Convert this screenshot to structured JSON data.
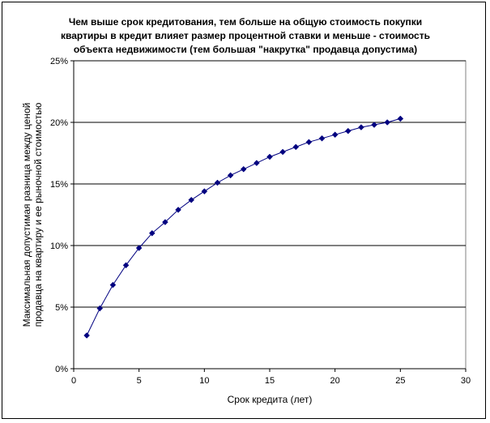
{
  "chart_data": {
    "type": "scatter",
    "connected": true,
    "title_lines": [
      "Чем выше срок кредитования, тем больше на общую стоимость покупки",
      "квартиры в кредит влияет размер процентной ставки и меньше - стоимость",
      "объекта недвижимости (тем большая \"накрутка\" продавца допустима)"
    ],
    "xlabel": "Срок кредита (лет)",
    "ylabel_lines": [
      "Максимальная допустимая разница между ценой",
      "продавца на квартиру и ее рыночной стоимостью"
    ],
    "xlim": [
      0,
      30
    ],
    "ylim": [
      0,
      25
    ],
    "x_ticks": [
      0,
      5,
      10,
      15,
      20,
      25,
      30
    ],
    "y_ticks": [
      0,
      5,
      10,
      15,
      20,
      25
    ],
    "y_tick_labels": [
      "0%",
      "5%",
      "10%",
      "15%",
      "20%",
      "25%"
    ],
    "y_unit": "%",
    "grid": "horizontal",
    "legend": "none",
    "marker": "diamond",
    "series": [
      {
        "color": "#000080",
        "x": [
          1,
          2,
          3,
          4,
          5,
          6,
          7,
          8,
          9,
          10,
          11,
          12,
          13,
          14,
          15,
          16,
          17,
          18,
          19,
          20,
          21,
          22,
          23,
          24,
          25
        ],
        "values": [
          2.7,
          4.9,
          6.8,
          8.4,
          9.8,
          11.0,
          11.9,
          12.9,
          13.7,
          14.4,
          15.1,
          15.7,
          16.2,
          16.7,
          17.2,
          17.6,
          18.0,
          18.4,
          18.7,
          19.0,
          19.3,
          19.6,
          19.8,
          20.0,
          20.3
        ]
      }
    ]
  }
}
